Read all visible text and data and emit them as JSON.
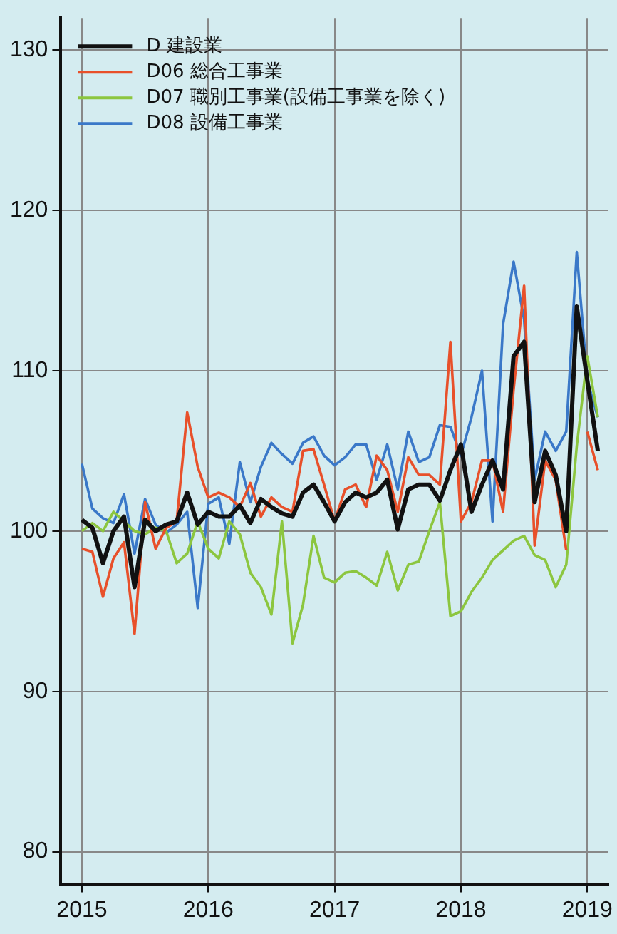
{
  "chart_data": {
    "type": "line",
    "x": [
      "2015-01",
      "2015-02",
      "2015-03",
      "2015-04",
      "2015-05",
      "2015-06",
      "2015-07",
      "2015-08",
      "2015-09",
      "2015-10",
      "2015-11",
      "2015-12",
      "2016-01",
      "2016-02",
      "2016-03",
      "2016-04",
      "2016-05",
      "2016-06",
      "2016-07",
      "2016-08",
      "2016-09",
      "2016-10",
      "2016-11",
      "2016-12",
      "2017-01",
      "2017-02",
      "2017-03",
      "2017-04",
      "2017-05",
      "2017-06",
      "2017-07",
      "2017-08",
      "2017-09",
      "2017-10",
      "2017-11",
      "2017-12",
      "2018-01",
      "2018-02",
      "2018-03",
      "2018-04",
      "2018-05",
      "2018-06",
      "2018-07",
      "2018-08",
      "2018-09",
      "2018-10",
      "2018-11",
      "2018-12",
      "2019-01",
      "2019-02"
    ],
    "series": [
      {
        "name": "D 建設業",
        "color": "#111111",
        "values": [
          100.7,
          100.2,
          98,
          100,
          100.9,
          96.5,
          100.7,
          100,
          100.4,
          100.6,
          102.4,
          100.4,
          101.2,
          100.9,
          100.9,
          101.6,
          100.5,
          102,
          101.5,
          101.1,
          100.9,
          102.4,
          102.9,
          101.8,
          100.6,
          101.8,
          102.4,
          102.1,
          102.4,
          103.2,
          100.1,
          102.6,
          102.9,
          102.9,
          101.9,
          103.8,
          105.4,
          101.2,
          102.9,
          104.4,
          102.6,
          110.9,
          111.8,
          101.8,
          105,
          103.5,
          100,
          114,
          109.4,
          105
        ]
      },
      {
        "name": "D06 総合工事業",
        "color": "#e8502a",
        "values": [
          98.9,
          98.7,
          95.9,
          98.3,
          99.3,
          93.6,
          101.8,
          98.9,
          100.2,
          100.6,
          107.4,
          104,
          102.1,
          102.4,
          102.1,
          101.5,
          103,
          100.9,
          102.1,
          101.5,
          101.2,
          105,
          105.1,
          102.9,
          100.6,
          102.6,
          102.9,
          101.5,
          104.7,
          103.8,
          101.2,
          104.6,
          103.5,
          103.5,
          102.9,
          111.8,
          100.6,
          101.8,
          104.4,
          104.4,
          101.2,
          108.8,
          115.3,
          99.1,
          104.4,
          103.2,
          98.8,
          null,
          106.2,
          103.8
        ]
      },
      {
        "name": "D07 職別工事業(設備工事業を除く)",
        "color": "#8cc63f",
        "values": [
          100,
          100.5,
          100,
          101.2,
          100.6,
          100,
          99.8,
          100.2,
          100,
          98,
          98.6,
          100.6,
          98.9,
          98.3,
          100.6,
          99.8,
          97.4,
          96.5,
          94.8,
          100.6,
          93,
          95.4,
          99.7,
          97.1,
          96.8,
          97.4,
          97.5,
          97.1,
          96.6,
          98.7,
          96.3,
          97.9,
          98.1,
          100,
          101.8,
          94.7,
          95,
          96.2,
          97.1,
          98.2,
          98.8,
          99.4,
          99.7,
          98.5,
          98.2,
          96.5,
          97.9,
          105.3,
          110.9,
          107.1
        ]
      },
      {
        "name": "D08 設備工事業",
        "color": "#3a78c8",
        "values": [
          104.2,
          101.4,
          100.8,
          100.5,
          102.3,
          98.6,
          102,
          100.4,
          99.9,
          100.4,
          101.2,
          95.2,
          101.7,
          102.1,
          99.2,
          104.3,
          101.8,
          104,
          105.5,
          104.8,
          104.2,
          105.5,
          105.9,
          104.7,
          104.1,
          104.6,
          105.4,
          105.4,
          103.2,
          105.4,
          102.6,
          106.2,
          104.3,
          104.6,
          106.6,
          106.5,
          104.7,
          107.1,
          110,
          100.6,
          112.9,
          116.8,
          113.2,
          103.2,
          106.2,
          105,
          106.2,
          117.4,
          109.4,
          107.1
        ]
      }
    ],
    "xlim": [
      "2014-11",
      "2019-03"
    ],
    "xticks": [
      "2015",
      "2016",
      "2017",
      "2018",
      "2019"
    ],
    "ylim": [
      78,
      132
    ],
    "yticks": [
      80,
      90,
      100,
      110,
      120,
      130
    ],
    "grid": true,
    "legend": "top left",
    "marker": "none",
    "line_style": "solid"
  }
}
